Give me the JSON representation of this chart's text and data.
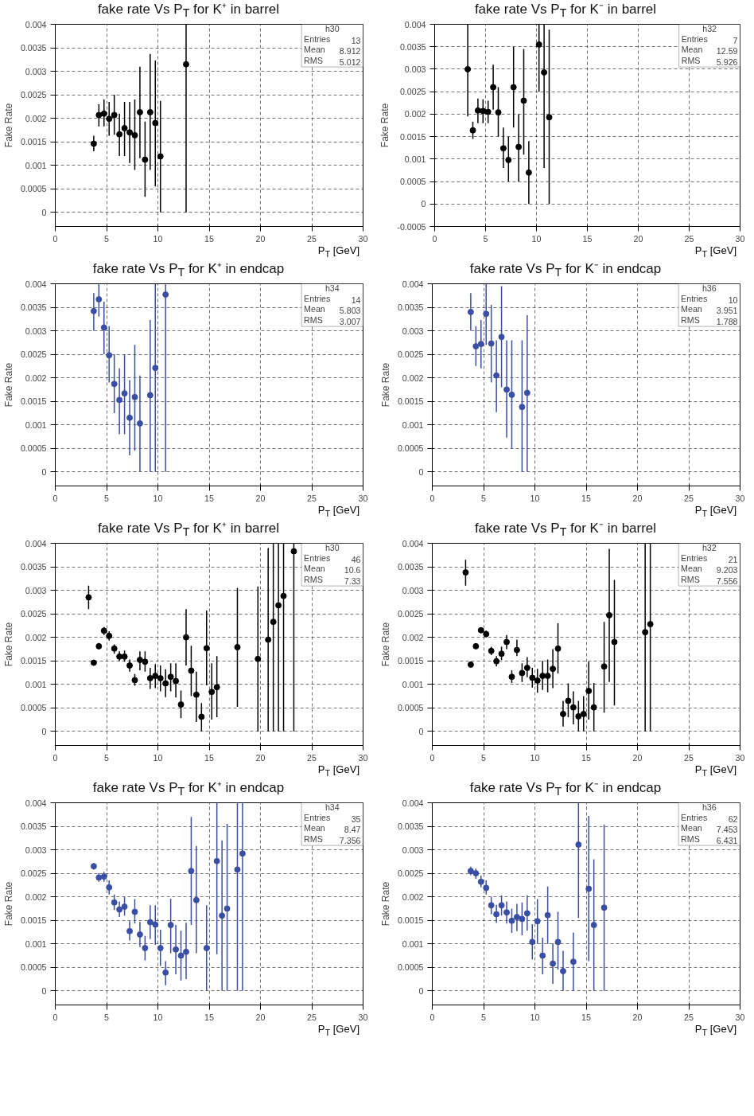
{
  "chart_data": [
    {
      "type": "scatter",
      "title": "fake rate Vs P$_{T}$ for K⁺ in barrel",
      "xlabel": "P$_{T}$ [GeV]",
      "ylabel": "Fake Rate",
      "annotations": [
        "h30",
        "Entries 13",
        "Mean 8.912",
        "RMS 5.012"
      ],
      "xlim": [
        0,
        30
      ],
      "ylim": [
        -0.0003,
        0.004
      ],
      "xticks": [
        0,
        5,
        10,
        15,
        20,
        25,
        30
      ],
      "yticks": [
        0,
        0.0005,
        0.001,
        0.0015,
        0.002,
        0.0025,
        0.003,
        0.0035,
        0.004
      ],
      "grid": true,
      "marker": "circle",
      "x": [
        3.75,
        4.25,
        4.75,
        5.25,
        5.75,
        6.25,
        6.75,
        7.25,
        7.75,
        8.25,
        8.75,
        9.25,
        9.75,
        10.25,
        12.75
      ],
      "series": [
        {
          "color": "#000000",
          "values": [
            0.00146,
            0.00207,
            0.0021,
            0.00199,
            0.00207,
            0.00166,
            0.00179,
            0.0017,
            0.00164,
            0.00213,
            0.00112,
            0.00213,
            0.0019,
            0.00119,
            0.00315
          ],
          "errors": [
            [
              0.0013,
              0.00163
            ],
            [
              0.00183,
              0.0023
            ],
            [
              0.00183,
              0.0024
            ],
            [
              0.00163,
              0.00235
            ],
            [
              0.00165,
              0.0025
            ],
            [
              0.0012,
              0.0021
            ],
            [
              0.0012,
              0.00235
            ],
            [
              0.00105,
              0.00235
            ],
            [
              0.0009,
              0.0024
            ],
            [
              0.00115,
              0.0031
            ],
            [
              0.00033,
              0.00193
            ],
            [
              0.0009,
              0.00337
            ],
            [
              0.00055,
              0.00323
            ],
            [
              0,
              0.00237
            ],
            [
              0,
              0.004
            ]
          ]
        }
      ]
    },
    {
      "type": "scatter",
      "title": "fake rate Vs P$_{T}$ for K⁻ in barrel",
      "xlabel": "P$_{T}$ [GeV]",
      "ylabel": "Fake Rate",
      "annotations": [
        "h32",
        "Entries 7",
        "Mean 12.59",
        "RMS 5.926"
      ],
      "xlim": [
        0,
        30
      ],
      "ylim": [
        -0.0005,
        0.004
      ],
      "xticks": [
        0,
        5,
        10,
        15,
        20,
        25,
        30
      ],
      "yticks": [
        -0.0005,
        0,
        0.0005,
        0.001,
        0.0015,
        0.002,
        0.0025,
        0.003,
        0.0035,
        0.004
      ],
      "grid": true,
      "marker": "circle",
      "x": [
        3.25,
        3.75,
        4.25,
        4.75,
        5.25,
        5.75,
        6.25,
        6.75,
        7.25,
        7.75,
        8.25,
        8.75,
        9.25,
        10.25,
        10.75,
        11.25
      ],
      "series": [
        {
          "color": "#000000",
          "values": [
            0.003,
            0.00164,
            0.00208,
            0.00207,
            0.00205,
            0.0026,
            0.00204,
            0.00124,
            0.00098,
            0.0026,
            0.00127,
            0.0023,
            0.0007,
            0.00355,
            0.00293,
            0.00193
          ],
          "errors": [
            [
              0.00195,
              0.004
            ],
            [
              0.00145,
              0.00183
            ],
            [
              0.0018,
              0.00235
            ],
            [
              0.0018,
              0.00233
            ],
            [
              0.0018,
              0.0023
            ],
            [
              0.0021,
              0.0031
            ],
            [
              0.0015,
              0.0026
            ],
            [
              0.0008,
              0.0017
            ],
            [
              0.0005,
              0.0015
            ],
            [
              0.0017,
              0.0035
            ],
            [
              0.0005,
              0.002
            ],
            [
              0.0011,
              0.00345
            ],
            [
              0,
              0.0014
            ],
            [
              0.0025,
              0.004
            ],
            [
              0.0008,
              0.004
            ],
            [
              0,
              0.00388
            ]
          ]
        }
      ]
    },
    {
      "type": "scatter",
      "title": "fake rate Vs P$_{T}$ for K⁺ in endcap",
      "xlabel": "P$_{T}$ [GeV]",
      "ylabel": "Fake Rate",
      "annotations": [
        "h34",
        "Entries 14",
        "Mean 5.803",
        "RMS 3.007"
      ],
      "xlim": [
        0,
        30
      ],
      "ylim": [
        -0.0003,
        0.004
      ],
      "xticks": [
        0,
        5,
        10,
        15,
        20,
        25,
        30
      ],
      "yticks": [
        0,
        0.0005,
        0.001,
        0.0015,
        0.002,
        0.0025,
        0.003,
        0.0035,
        0.004
      ],
      "grid": true,
      "marker": "circle",
      "x": [
        3.75,
        4.25,
        4.75,
        5.25,
        5.75,
        6.25,
        6.75,
        7.25,
        7.75,
        8.25,
        9.25,
        9.75,
        10.75
      ],
      "series": [
        {
          "color": "#3a4fa3",
          "values": [
            0.00342,
            0.00367,
            0.00307,
            0.00248,
            0.00187,
            0.00153,
            0.00167,
            0.00115,
            0.00159,
            0.00103,
            0.00163,
            0.00221,
            0.00377
          ],
          "errors": [
            [
              0.003,
              0.0038
            ],
            [
              0.0033,
              0.004
            ],
            [
              0.0025,
              0.00362
            ],
            [
              0.0019,
              0.0031
            ],
            [
              0.00125,
              0.0025
            ],
            [
              0.0008,
              0.0022
            ],
            [
              0.0008,
              0.0025
            ],
            [
              0.00035,
              0.00195
            ],
            [
              0.00045,
              0.0027
            ],
            [
              0,
              0.00205
            ],
            [
              0,
              0.00323
            ],
            [
              0,
              0.004
            ],
            [
              0,
              0.004
            ]
          ]
        }
      ]
    },
    {
      "type": "scatter",
      "title": "fake rate Vs P$_{T}$ for K⁻ in endcap",
      "xlabel": "P$_{T}$ [GeV]",
      "ylabel": "Fake Rate",
      "annotations": [
        "h36",
        "Entries 10",
        "Mean 3.951",
        "RMS 1.788"
      ],
      "xlim": [
        0,
        30
      ],
      "ylim": [
        -0.0003,
        0.004
      ],
      "xticks": [
        0,
        5,
        10,
        15,
        20,
        25,
        30
      ],
      "yticks": [
        0,
        0.0005,
        0.001,
        0.0015,
        0.002,
        0.0025,
        0.003,
        0.0035,
        0.004
      ],
      "grid": true,
      "marker": "circle",
      "x": [
        3.75,
        4.25,
        4.75,
        5.25,
        5.75,
        6.25,
        6.75,
        7.25,
        7.75,
        8.75,
        9.25
      ],
      "series": [
        {
          "color": "#3a4fa3",
          "values": [
            0.0034,
            0.00267,
            0.00272,
            0.00336,
            0.00273,
            0.00205,
            0.00287,
            0.00175,
            0.00164,
            0.00138,
            0.00168
          ],
          "errors": [
            [
              0.003,
              0.0038
            ],
            [
              0.00225,
              0.0031
            ],
            [
              0.0022,
              0.00323
            ],
            [
              0.0027,
              0.004
            ],
            [
              0.0019,
              0.00355
            ],
            [
              0.00127,
              0.0028
            ],
            [
              0.0018,
              0.00395
            ],
            [
              0.00073,
              0.0028
            ],
            [
              0.0005,
              0.0028
            ],
            [
              0,
              0.0028
            ],
            [
              0,
              0.00333
            ]
          ]
        }
      ]
    },
    {
      "type": "scatter",
      "title": "fake rate Vs P$_{T}$ for K⁺ in barrel",
      "xlabel": "P$_{T}$ [GeV]",
      "ylabel": "Fake Rate",
      "annotations": [
        "h30",
        "Entries 46",
        "Mean 10.6",
        "RMS 7.33"
      ],
      "xlim": [
        0,
        30
      ],
      "ylim": [
        -0.0003,
        0.004
      ],
      "xticks": [
        0,
        5,
        10,
        15,
        20,
        25,
        30
      ],
      "yticks": [
        0,
        0.0005,
        0.001,
        0.0015,
        0.002,
        0.0025,
        0.003,
        0.0035,
        0.004
      ],
      "grid": true,
      "marker": "circle",
      "x": [
        3.25,
        3.75,
        4.25,
        4.75,
        5.25,
        5.75,
        6.25,
        6.75,
        7.25,
        7.75,
        8.25,
        8.75,
        9.25,
        9.75,
        10.25,
        10.75,
        11.25,
        11.75,
        12.25,
        12.75,
        13.25,
        13.75,
        14.25,
        14.75,
        15.25,
        15.75,
        17.75,
        19.75,
        20.75,
        21.25,
        21.75,
        22.25,
        23.25
      ],
      "series": [
        {
          "color": "#000000",
          "values": [
            0.00285,
            0.00146,
            0.00181,
            0.00214,
            0.00203,
            0.00176,
            0.00159,
            0.00159,
            0.0014,
            0.00109,
            0.00152,
            0.00148,
            0.00113,
            0.00118,
            0.00113,
            0.00102,
            0.00116,
            0.00107,
            0.00057,
            0.002,
            0.00129,
            0.00078,
            0.00031,
            0.00177,
            0.00084,
            0.00094,
            0.00179,
            0.00154,
            0.00195,
            0.00233,
            0.00268,
            0.00288,
            0.00383
          ],
          "errors": [
            [
              0.0026,
              0.0031
            ],
            [
              0.00142,
              0.0015
            ],
            [
              0.00175,
              0.00188
            ],
            [
              0.00205,
              0.00222
            ],
            [
              0.00193,
              0.00213
            ],
            [
              0.00165,
              0.00185
            ],
            [
              0.0015,
              0.0017
            ],
            [
              0.00148,
              0.00172
            ],
            [
              0.00127,
              0.00153
            ],
            [
              0.00097,
              0.00122
            ],
            [
              0.0013,
              0.0017
            ],
            [
              0.00127,
              0.0017
            ],
            [
              0.0009,
              0.00135
            ],
            [
              0.00092,
              0.00143
            ],
            [
              0.00085,
              0.0014
            ],
            [
              0.00073,
              0.00132
            ],
            [
              0.00085,
              0.00145
            ],
            [
              0.00072,
              0.00145
            ],
            [
              0.00028,
              0.00087
            ],
            [
              0.0014,
              0.0026
            ],
            [
              0.00075,
              0.00182
            ],
            [
              0.0002,
              0.00127
            ],
            [
              0,
              0.0006
            ],
            [
              0.00098,
              0.00257
            ],
            [
              0.00025,
              0.00145
            ],
            [
              0.0003,
              0.0016
            ],
            [
              0.00052,
              0.00305
            ],
            [
              0,
              0.00308
            ],
            [
              0,
              0.0039
            ],
            [
              0,
              0.004
            ],
            [
              0,
              0.004
            ],
            [
              0,
              0.004
            ],
            [
              0,
              0.004
            ]
          ]
        }
      ]
    },
    {
      "type": "scatter",
      "title": "fake rate Vs P$_{T}$ for K⁻ in barrel",
      "xlabel": "P$_{T}$ [GeV]",
      "ylabel": "Fake Rate",
      "annotations": [
        "h32",
        "Entries 21",
        "Mean 9.203",
        "RMS 7.556"
      ],
      "xlim": [
        0,
        30
      ],
      "ylim": [
        -0.0003,
        0.004
      ],
      "xticks": [
        0,
        5,
        10,
        15,
        20,
        25,
        30
      ],
      "yticks": [
        0,
        0.0005,
        0.001,
        0.0015,
        0.002,
        0.0025,
        0.003,
        0.0035,
        0.004
      ],
      "grid": true,
      "marker": "circle",
      "x": [
        3.25,
        3.75,
        4.25,
        4.75,
        5.25,
        5.75,
        6.25,
        6.75,
        7.25,
        7.75,
        8.25,
        8.75,
        9.25,
        9.75,
        10.25,
        10.75,
        11.25,
        11.75,
        12.25,
        12.75,
        13.25,
        13.75,
        14.25,
        14.75,
        15.25,
        15.75,
        16.75,
        17.25,
        17.75,
        20.75,
        21.25
      ],
      "series": [
        {
          "color": "#000000",
          "values": [
            0.00338,
            0.00142,
            0.00181,
            0.00215,
            0.00207,
            0.00171,
            0.00149,
            0.00165,
            0.0019,
            0.00116,
            0.00173,
            0.00124,
            0.00135,
            0.00114,
            0.00108,
            0.00118,
            0.00118,
            0.00133,
            0.00176,
            0.00037,
            0.00065,
            0.00051,
            0.00032,
            0.00037,
            0.00086,
            0.00051,
            0.00138,
            0.00247,
            0.0019,
            0.00211,
            0.00228
          ],
          "errors": [
            [
              0.0031,
              0.00365
            ],
            [
              0.00138,
              0.00146
            ],
            [
              0.00177,
              0.00185
            ],
            [
              0.0021,
              0.0022
            ],
            [
              0.002,
              0.00214
            ],
            [
              0.00162,
              0.0018
            ],
            [
              0.00138,
              0.0016
            ],
            [
              0.00152,
              0.0018
            ],
            [
              0.00175,
              0.00205
            ],
            [
              0.00103,
              0.0013
            ],
            [
              0.0016,
              0.00195
            ],
            [
              0.00105,
              0.00145
            ],
            [
              0.00115,
              0.00158
            ],
            [
              0.00093,
              0.00135
            ],
            [
              0.00082,
              0.00133
            ],
            [
              0.00088,
              0.0015
            ],
            [
              0.00083,
              0.00153
            ],
            [
              0.00092,
              0.00175
            ],
            [
              0.00123,
              0.0023
            ],
            [
              0.0001,
              0.00065
            ],
            [
              0.0003,
              0.00102
            ],
            [
              0.00015,
              0.00085
            ],
            [
              0,
              0.00065
            ],
            [
              0,
              0.00075
            ],
            [
              0.00025,
              0.00148
            ],
            [
              0,
              0.00103
            ],
            [
              0.0004,
              0.00233
            ],
            [
              0.00105,
              0.00388
            ],
            [
              0.00055,
              0.00322
            ],
            [
              0,
              0.004
            ],
            [
              0,
              0.004
            ]
          ]
        }
      ]
    },
    {
      "type": "scatter",
      "title": "fake rate Vs P$_{T}$ for K⁺ in endcap",
      "xlabel": "P$_{T}$ [GeV]",
      "ylabel": "Fake Rate",
      "annotations": [
        "h34",
        "Entries 35",
        "Mean 8.47",
        "RMS 7.356"
      ],
      "xlim": [
        0,
        30
      ],
      "ylim": [
        -0.0003,
        0.004
      ],
      "xticks": [
        0,
        5,
        10,
        15,
        20,
        25,
        30
      ],
      "yticks": [
        0,
        0.0005,
        0.001,
        0.0015,
        0.002,
        0.0025,
        0.003,
        0.0035,
        0.004
      ],
      "grid": true,
      "marker": "circle",
      "x": [
        3.75,
        4.25,
        4.75,
        5.25,
        5.75,
        6.25,
        6.75,
        7.25,
        7.75,
        8.25,
        8.75,
        9.25,
        9.75,
        10.25,
        10.75,
        11.25,
        11.75,
        12.25,
        12.75,
        13.25,
        13.75,
        14.75,
        15.75,
        16.25,
        16.75,
        17.75,
        18.25
      ],
      "series": [
        {
          "color": "#3a4fa3",
          "values": [
            0.00265,
            0.00241,
            0.00243,
            0.0022,
            0.00188,
            0.00173,
            0.00179,
            0.00127,
            0.00168,
            0.0012,
            0.00091,
            0.00146,
            0.00141,
            0.00091,
            0.00039,
            0.0014,
            0.00088,
            0.00075,
            0.00083,
            0.00255,
            0.00193,
            0.00091,
            0.00276,
            0.0016,
            0.00175,
            0.00258,
            0.00292
          ],
          "errors": [
            [
              0.00258,
              0.00272
            ],
            [
              0.00232,
              0.0025
            ],
            [
              0.00232,
              0.00253
            ],
            [
              0.00205,
              0.00235
            ],
            [
              0.00172,
              0.00205
            ],
            [
              0.00157,
              0.0019
            ],
            [
              0.0016,
              0.002
            ],
            [
              0.00107,
              0.00148
            ],
            [
              0.00143,
              0.00195
            ],
            [
              0.00093,
              0.00147
            ],
            [
              0.00065,
              0.00117
            ],
            [
              0.0011,
              0.00182
            ],
            [
              0.00098,
              0.00182
            ],
            [
              0.00053,
              0.0013
            ],
            [
              0.00012,
              0.00063
            ],
            [
              0.0008,
              0.00196
            ],
            [
              0.00035,
              0.0014
            ],
            [
              0.00022,
              0.00128
            ],
            [
              0.00025,
              0.00145
            ],
            [
              0.0014,
              0.0037
            ],
            [
              0.0008,
              0.00308
            ],
            [
              0,
              0.00182
            ],
            [
              0.00078,
              0.004
            ],
            [
              0,
              0.0032
            ],
            [
              0,
              0.00355
            ],
            [
              0,
              0.004
            ],
            [
              0,
              0.004
            ]
          ]
        }
      ]
    },
    {
      "type": "scatter",
      "title": "fake rate Vs P$_{T}$ for K⁻ in endcap",
      "xlabel": "P$_{T}$ [GeV]",
      "ylabel": "Fake Rate",
      "annotations": [
        "h36",
        "Entries 62",
        "Mean 7.453",
        "RMS 6.431"
      ],
      "xlim": [
        0,
        30
      ],
      "ylim": [
        -0.0003,
        0.004
      ],
      "xticks": [
        0,
        5,
        10,
        15,
        20,
        25,
        30
      ],
      "yticks": [
        0,
        0.0005,
        0.001,
        0.0015,
        0.002,
        0.0025,
        0.003,
        0.0035,
        0.004
      ],
      "grid": true,
      "marker": "circle",
      "x": [
        3.75,
        4.25,
        4.75,
        5.25,
        5.75,
        6.25,
        6.75,
        7.25,
        7.75,
        8.25,
        8.75,
        9.25,
        9.75,
        10.25,
        10.75,
        11.25,
        11.75,
        12.25,
        12.75,
        13.75,
        14.25,
        15.25,
        15.75,
        16.75
      ],
      "series": [
        {
          "color": "#3a4fa3",
          "values": [
            0.00255,
            0.0025,
            0.00232,
            0.00219,
            0.00182,
            0.00163,
            0.00182,
            0.00167,
            0.00149,
            0.00157,
            0.00153,
            0.00165,
            0.00104,
            0.00148,
            0.00075,
            0.00161,
            0.00058,
            0.00104,
            0.00042,
            0.00062,
            0.00311,
            0.00217,
            0.0014,
            0.00177
          ],
          "errors": [
            [
              0.00246,
              0.00264
            ],
            [
              0.00238,
              0.0026
            ],
            [
              0.0022,
              0.00245
            ],
            [
              0.00205,
              0.00235
            ],
            [
              0.00163,
              0.002
            ],
            [
              0.00145,
              0.00183
            ],
            [
              0.0016,
              0.00203
            ],
            [
              0.00143,
              0.0019
            ],
            [
              0.00123,
              0.00175
            ],
            [
              0.00127,
              0.00185
            ],
            [
              0.00118,
              0.00188
            ],
            [
              0.00128,
              0.00203
            ],
            [
              0.00067,
              0.00142
            ],
            [
              0.001,
              0.00195
            ],
            [
              0.00035,
              0.00113
            ],
            [
              0.001,
              0.00222
            ],
            [
              0.00015,
              0.00101
            ],
            [
              0.00045,
              0.00168
            ],
            [
              0,
              0.00085
            ],
            [
              0,
              0.00124
            ],
            [
              0.00155,
              0.004
            ],
            [
              0.00063,
              0.00372
            ],
            [
              0,
              0.0028
            ],
            [
              0,
              0.00354
            ]
          ]
        }
      ]
    }
  ]
}
